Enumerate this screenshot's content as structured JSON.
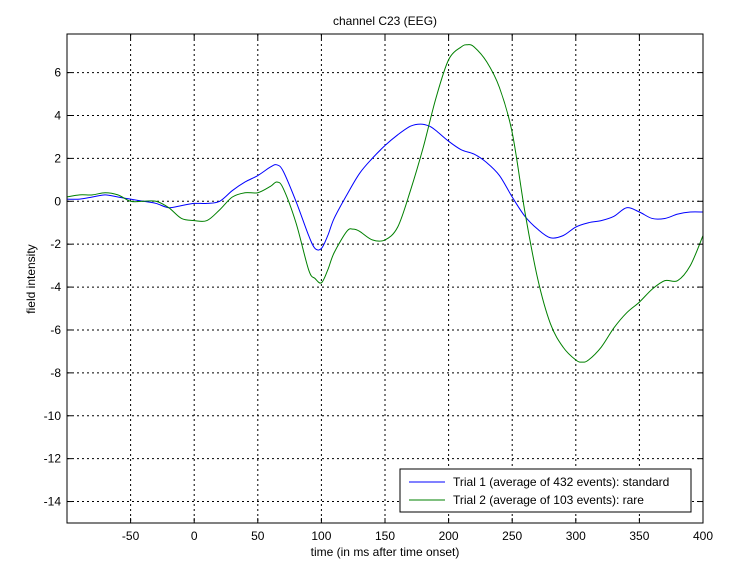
{
  "chart_data": {
    "type": "line",
    "title": "channel C23 (EEG)",
    "xlabel": "time (in ms after time onset)",
    "ylabel": "field intensity",
    "xlim": [
      -100,
      400
    ],
    "ylim": [
      -15,
      7.8
    ],
    "xticks": [
      -50,
      0,
      50,
      100,
      150,
      200,
      250,
      300,
      350,
      400
    ],
    "yticks": [
      -14,
      -12,
      -10,
      -8,
      -6,
      -4,
      -2,
      0,
      2,
      4,
      6
    ],
    "grid": true,
    "legend_position": "bottom-right",
    "series": [
      {
        "name": "Trial 1 (average of 432 events): standard",
        "color": "#0000ff",
        "x": [
          -100,
          -90,
          -80,
          -70,
          -60,
          -50,
          -40,
          -30,
          -20,
          -10,
          0,
          10,
          20,
          30,
          40,
          50,
          60,
          65,
          70,
          80,
          90,
          95,
          100,
          105,
          110,
          120,
          130,
          140,
          150,
          160,
          170,
          178,
          185,
          190,
          200,
          210,
          220,
          230,
          240,
          250,
          260,
          270,
          280,
          290,
          300,
          310,
          320,
          330,
          340,
          350,
          360,
          370,
          380,
          390,
          400
        ],
        "y": [
          0.1,
          0.1,
          0.2,
          0.3,
          0.2,
          0.1,
          0.0,
          -0.1,
          -0.3,
          -0.2,
          -0.1,
          -0.1,
          0.0,
          0.5,
          0.9,
          1.2,
          1.6,
          1.7,
          1.4,
          0.0,
          -1.6,
          -2.2,
          -2.2,
          -1.6,
          -0.8,
          0.3,
          1.3,
          2.0,
          2.6,
          3.1,
          3.5,
          3.6,
          3.5,
          3.3,
          2.8,
          2.4,
          2.2,
          1.8,
          1.2,
          0.2,
          -0.7,
          -1.3,
          -1.7,
          -1.6,
          -1.2,
          -1.0,
          -0.9,
          -0.7,
          -0.3,
          -0.5,
          -0.8,
          -0.8,
          -0.6,
          -0.5,
          -0.5
        ]
      },
      {
        "name": "Trial 2 (average of 103 events): rare",
        "color": "#008000",
        "x": [
          -100,
          -90,
          -80,
          -70,
          -60,
          -50,
          -40,
          -30,
          -20,
          -10,
          0,
          10,
          20,
          30,
          40,
          50,
          60,
          65,
          70,
          80,
          90,
          95,
          100,
          105,
          110,
          120,
          125,
          130,
          140,
          150,
          160,
          170,
          180,
          190,
          200,
          210,
          215,
          220,
          230,
          240,
          250,
          260,
          270,
          280,
          290,
          300,
          305,
          310,
          320,
          330,
          340,
          350,
          360,
          370,
          380,
          390,
          400
        ],
        "y": [
          0.2,
          0.3,
          0.3,
          0.4,
          0.3,
          0.0,
          0.0,
          0.0,
          -0.3,
          -0.8,
          -0.9,
          -0.9,
          -0.4,
          0.2,
          0.4,
          0.4,
          0.7,
          0.9,
          0.6,
          -1.0,
          -3.2,
          -3.6,
          -3.8,
          -3.2,
          -2.4,
          -1.4,
          -1.3,
          -1.4,
          -1.8,
          -1.8,
          -1.2,
          0.5,
          2.5,
          4.8,
          6.6,
          7.2,
          7.3,
          7.2,
          6.5,
          5.3,
          3.2,
          -0.5,
          -3.6,
          -5.7,
          -6.8,
          -7.4,
          -7.5,
          -7.4,
          -6.8,
          -5.9,
          -5.2,
          -4.7,
          -4.1,
          -3.7,
          -3.7,
          -3.0,
          -1.6
        ]
      }
    ]
  }
}
